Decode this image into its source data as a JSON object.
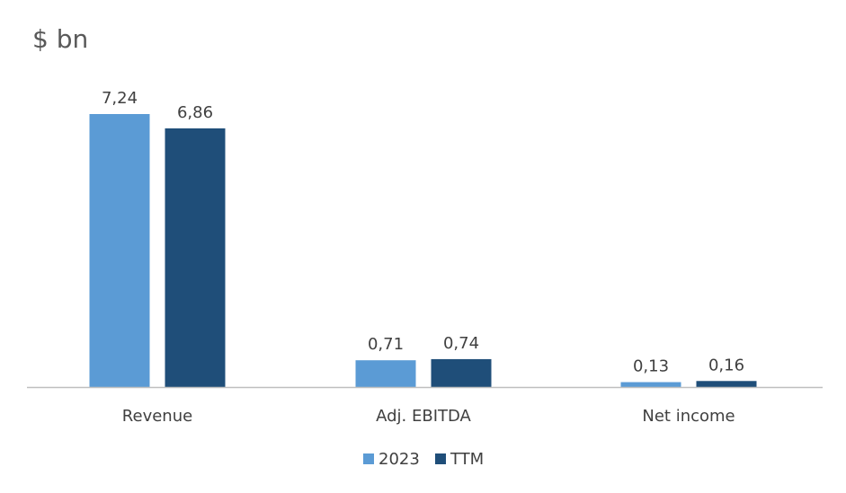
{
  "chart_data": {
    "type": "bar",
    "title": "$ bn",
    "categories": [
      "Revenue",
      "Adj. EBITDA",
      "Net income"
    ],
    "series": [
      {
        "name": "2023",
        "values": [
          7.24,
          0.71,
          0.13
        ],
        "labels": [
          "7,24",
          "0,71",
          "0,13"
        ],
        "color": "#5B9BD5"
      },
      {
        "name": "TTM",
        "values": [
          6.86,
          0.74,
          0.16
        ],
        "labels": [
          "6,86",
          "0,74",
          "0,16"
        ],
        "color": "#1F4E79"
      }
    ],
    "ylim": [
      0,
      7.24
    ],
    "grid": false,
    "legend": "bottom-center",
    "axis_color": "#BFBFBF"
  }
}
